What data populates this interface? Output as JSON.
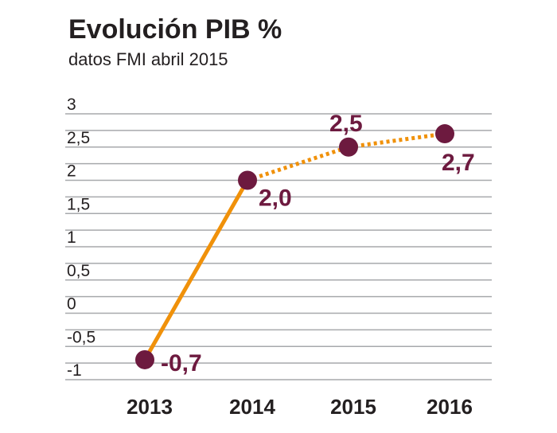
{
  "chart_data": {
    "type": "line",
    "title": "Evolución PIB %",
    "subtitle": "datos FMI abril 2015",
    "categories": [
      "2013",
      "2014",
      "2015",
      "2016"
    ],
    "values": [
      -0.7,
      2.0,
      2.5,
      2.7
    ],
    "value_labels": [
      "-0,7",
      "2,0",
      "2,5",
      "2,7"
    ],
    "segment_styles": [
      "solid",
      "dotted",
      "dotted"
    ],
    "ylim": [
      -1.1,
      3
    ],
    "y_ticks": [
      3,
      2.5,
      2,
      1.5,
      1,
      0.5,
      0,
      -0.5,
      -1
    ],
    "y_tick_labels": [
      "3",
      "2,5",
      "2",
      "1,5",
      "1",
      "0,5",
      "0",
      "-0,5",
      "-1"
    ],
    "grid": true,
    "colors": {
      "line": "#f0910a",
      "marker": "#6d1a3f",
      "grid": "#a7a9ac",
      "text": "#231f20"
    }
  }
}
